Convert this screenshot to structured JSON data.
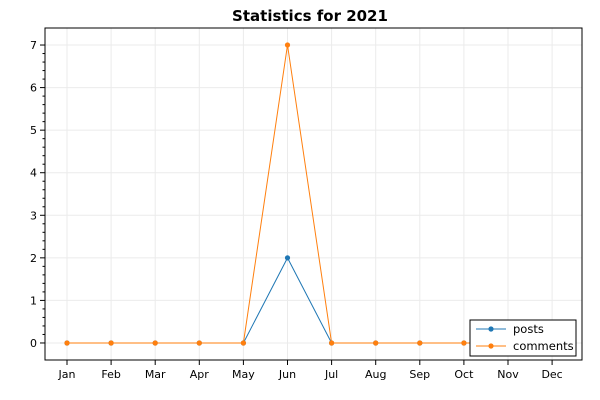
{
  "chart_data": {
    "type": "line",
    "title": "Statistics for 2021",
    "xlabel": "",
    "ylabel": "",
    "categories": [
      "Jan",
      "Feb",
      "Mar",
      "Apr",
      "May",
      "Jun",
      "Jul",
      "Aug",
      "Sep",
      "Oct",
      "Nov",
      "Dec"
    ],
    "series": [
      {
        "name": "posts",
        "color": "#1f77b4",
        "values": [
          0,
          0,
          0,
          0,
          0,
          2,
          0,
          0,
          0,
          0,
          0,
          null
        ]
      },
      {
        "name": "comments",
        "color": "#ff7f0e",
        "values": [
          0,
          0,
          0,
          0,
          0,
          7,
          0,
          0,
          0,
          0,
          0,
          null
        ]
      }
    ],
    "y_ticks": [
      0,
      1,
      2,
      3,
      4,
      5,
      6,
      7
    ],
    "ylim": [
      -0.4,
      7.4
    ],
    "grid": true,
    "legend_position": "bottom-right"
  }
}
